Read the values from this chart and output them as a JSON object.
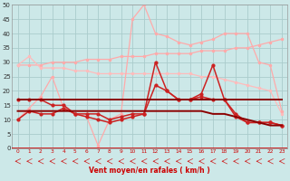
{
  "xlabel": "Vent moyen/en rafales ( km/h )",
  "bg_color": "#cce8e8",
  "grid_color": "#aacccc",
  "x": [
    0,
    1,
    2,
    3,
    4,
    5,
    6,
    7,
    8,
    9,
    10,
    11,
    12,
    13,
    14,
    15,
    16,
    17,
    18,
    19,
    20,
    21,
    22,
    23
  ],
  "line_gust_top": [
    29,
    29,
    29,
    30,
    30,
    30,
    31,
    31,
    31,
    32,
    32,
    32,
    33,
    33,
    33,
    33,
    34,
    34,
    34,
    35,
    35,
    36,
    37,
    38
  ],
  "line_gust_mid": [
    29,
    32,
    28,
    28,
    28,
    27,
    27,
    26,
    26,
    26,
    26,
    26,
    26,
    26,
    26,
    26,
    25,
    25,
    24,
    23,
    22,
    21,
    20,
    12
  ],
  "line_gust_low": [
    10,
    14,
    18,
    25,
    14,
    12,
    11,
    1,
    10,
    12,
    45,
    50,
    40,
    39,
    37,
    36,
    37,
    38,
    40,
    40,
    40,
    30,
    29,
    13
  ],
  "line_mean_dark1": [
    17,
    17,
    17,
    17,
    17,
    17,
    17,
    17,
    17,
    17,
    17,
    17,
    17,
    17,
    17,
    17,
    17,
    17,
    17,
    17,
    17,
    17,
    17,
    17
  ],
  "line_mean_dark2": [
    13,
    13,
    13,
    13,
    13,
    13,
    13,
    13,
    13,
    13,
    13,
    13,
    13,
    13,
    13,
    13,
    13,
    12,
    12,
    11,
    10,
    9,
    8,
    8
  ],
  "line_mean_med1": [
    10,
    13,
    12,
    12,
    14,
    12,
    11,
    10,
    9,
    10,
    11,
    12,
    22,
    20,
    17,
    17,
    18,
    17,
    17,
    11,
    9,
    9,
    9,
    8
  ],
  "line_mean_med2": [
    17,
    17,
    17,
    15,
    15,
    12,
    12,
    12,
    10,
    11,
    12,
    12,
    30,
    20,
    17,
    17,
    19,
    29,
    17,
    12,
    9,
    9,
    9,
    8
  ],
  "c_light1": "#ffaaaa",
  "c_light2": "#ffbbbb",
  "c_light3": "#ffaaaa",
  "c_dark1": "#8b0000",
  "c_dark2": "#8b0000",
  "c_med1": "#cc2222",
  "c_med2": "#cc2222",
  "ylim": [
    0,
    50
  ],
  "xlim_min": -0.5,
  "xlim_max": 23.5,
  "yticks": [
    0,
    5,
    10,
    15,
    20,
    25,
    30,
    35,
    40,
    45,
    50
  ],
  "xticks": [
    0,
    1,
    2,
    3,
    4,
    5,
    6,
    7,
    8,
    9,
    10,
    11,
    12,
    13,
    14,
    15,
    16,
    17,
    18,
    19,
    20,
    21,
    22,
    23
  ]
}
